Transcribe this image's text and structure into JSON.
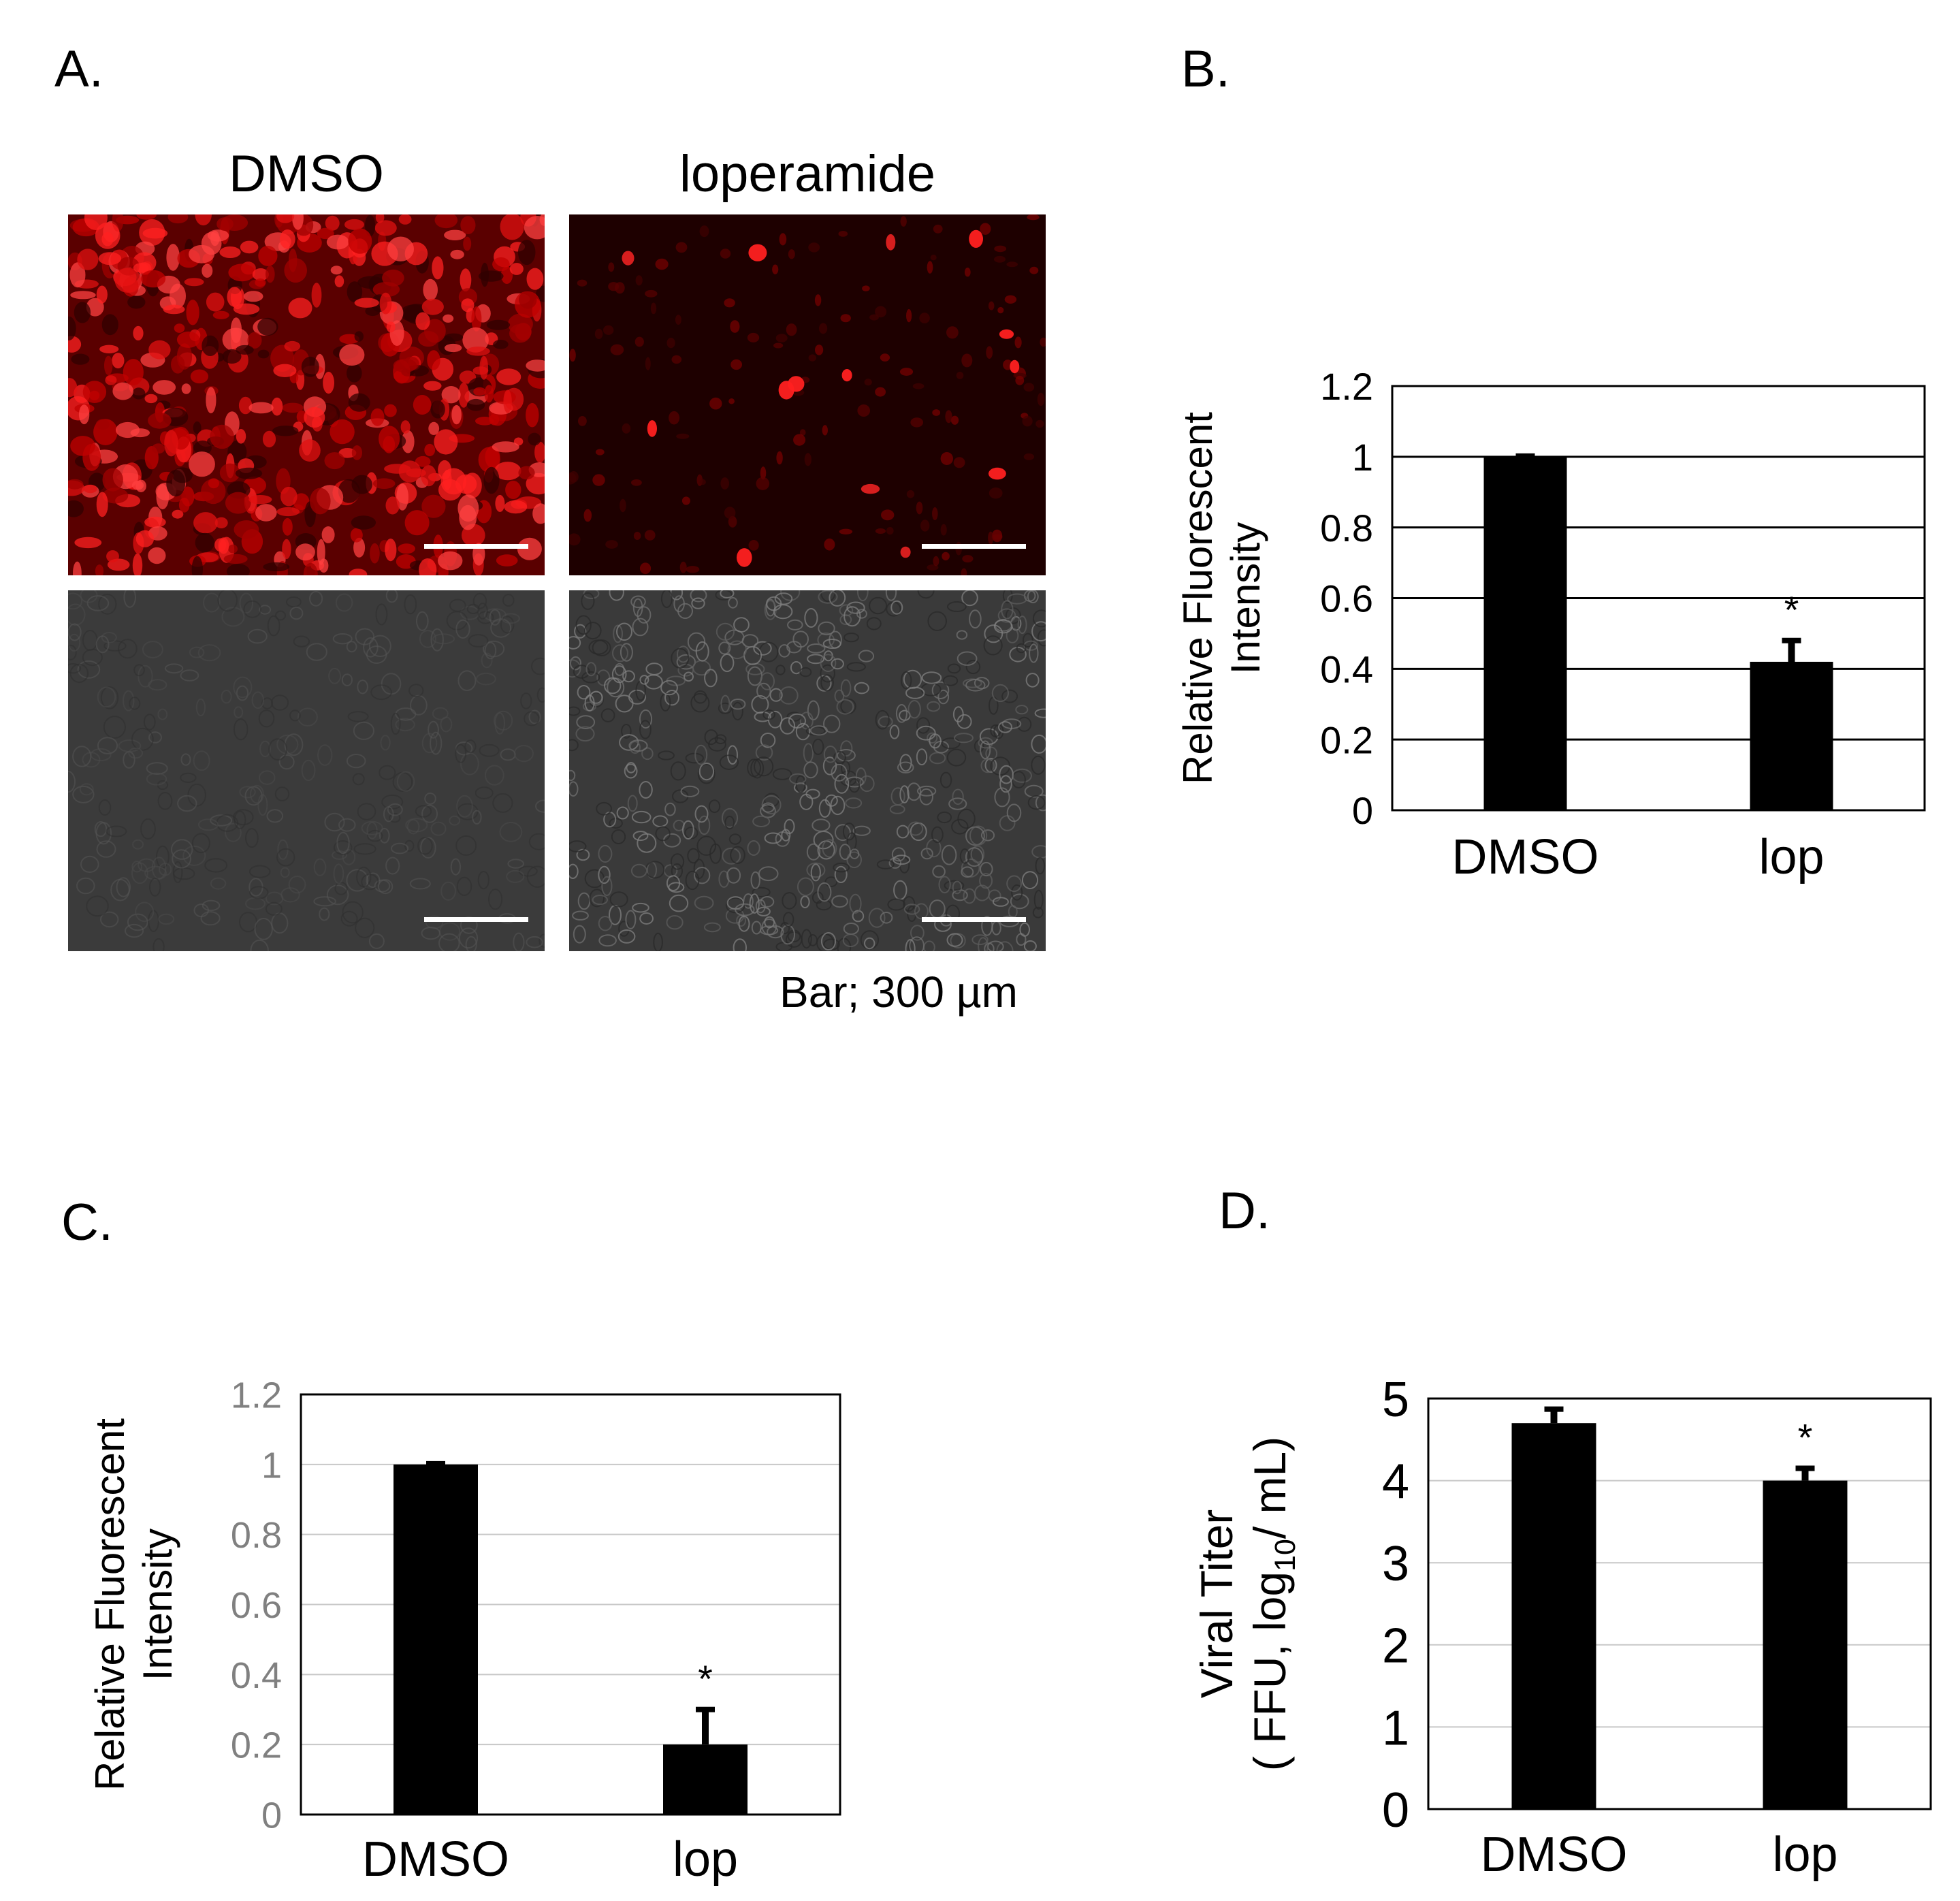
{
  "panels": {
    "a": {
      "letter": "A.",
      "columns": [
        "DMSO",
        "loperamide"
      ],
      "scale_note": "Bar; 300 µm",
      "images": [
        {
          "name": "fluorescence-dmso",
          "kind": "fluorescence",
          "level": "high",
          "color": "#e01010"
        },
        {
          "name": "fluorescence-loperamide",
          "kind": "fluorescence",
          "level": "low",
          "color": "#e01010"
        },
        {
          "name": "brightfield-dmso",
          "kind": "brightfield",
          "color": "#3a3a3a"
        },
        {
          "name": "brightfield-loperamide",
          "kind": "brightfield",
          "color": "#3a3a3a"
        }
      ]
    },
    "b": {
      "letter": "B."
    },
    "c": {
      "letter": "C."
    },
    "d": {
      "letter": "D."
    }
  },
  "chart_data": [
    {
      "id": "B",
      "type": "bar",
      "categories": [
        "DMSO",
        "lop"
      ],
      "values": [
        1.0,
        0.42
      ],
      "errors": [
        0.0,
        0.06
      ],
      "annotations": [
        "",
        "*"
      ],
      "ylabel_lines": [
        "Relative  Fluorescent",
        "Intensity"
      ],
      "ylim": [
        0,
        1.2
      ],
      "yticks": [
        0,
        0.2,
        0.4,
        0.6,
        0.8,
        1,
        1.2
      ],
      "ytick_labels": [
        "0",
        "0.2",
        "0.4",
        "0.6",
        "0.8",
        "1",
        "1.2"
      ],
      "grid": true,
      "grid_color": "#000000",
      "tick_color": "#000000",
      "bar_color": "#000000"
    },
    {
      "id": "C",
      "type": "bar",
      "categories": [
        "DMSO",
        "lop"
      ],
      "values": [
        1.0,
        0.2
      ],
      "errors": [
        0.0,
        0.1
      ],
      "annotations": [
        "",
        "*"
      ],
      "ylabel_lines": [
        "Relative Fluorescent",
        "Intensity"
      ],
      "ylim": [
        0,
        1.2
      ],
      "yticks": [
        0,
        0.2,
        0.4,
        0.6,
        0.8,
        1,
        1.2
      ],
      "ytick_labels": [
        "0",
        "0.2",
        "0.4",
        "0.6",
        "0.8",
        "1",
        "1.2"
      ],
      "grid": true,
      "grid_color": "#c8c8c8",
      "tick_color": "#808080",
      "bar_color": "#000000"
    },
    {
      "id": "D",
      "type": "bar",
      "categories": [
        "DMSO",
        "lop"
      ],
      "values": [
        4.7,
        4.0
      ],
      "errors": [
        0.17,
        0.15
      ],
      "annotations": [
        "",
        "*"
      ],
      "ylabel_lines": [
        "Viral Titer",
        "( FFU, log10/ mL)"
      ],
      "ylim": [
        0,
        5
      ],
      "yticks": [
        0,
        1,
        2,
        3,
        4,
        5
      ],
      "ytick_labels": [
        "0",
        "1",
        "2",
        "3",
        "4",
        "5"
      ],
      "grid": true,
      "grid_color": "#c8c8c8",
      "tick_color": "#000000",
      "bar_color": "#000000"
    }
  ]
}
